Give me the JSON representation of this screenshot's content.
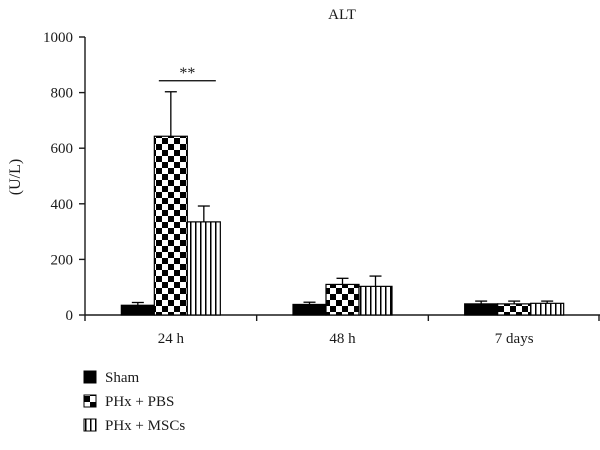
{
  "chart_data": {
    "type": "bar",
    "title": "ALT",
    "ylabel": "(U/L)",
    "xlabel": "",
    "ylim": [
      0,
      1000
    ],
    "yticks": [
      0,
      200,
      400,
      600,
      800,
      1000
    ],
    "categories": [
      "24 h",
      "48 h",
      "7 days"
    ],
    "series": [
      {
        "name": "Sham",
        "pattern": "solid",
        "values": [
          35,
          38,
          40
        ],
        "errors": [
          10,
          8,
          10
        ]
      },
      {
        "name": "PHx + PBS",
        "pattern": "checker",
        "values": [
          643,
          110,
          40
        ],
        "errors": [
          160,
          22,
          10
        ]
      },
      {
        "name": "PHx + MSCs",
        "pattern": "vstripe",
        "values": [
          335,
          103,
          42
        ],
        "errors": [
          57,
          37,
          8
        ]
      }
    ],
    "annotations": [
      {
        "text": "**",
        "category": "24 h",
        "between_series": [
          "PHx + PBS",
          "PHx + MSCs"
        ]
      }
    ],
    "legend_position": "bottom-left",
    "grid": false
  },
  "colors": {
    "bar_fill": "#000000",
    "background": "#ffffff",
    "axis": "#1a1a1a"
  }
}
